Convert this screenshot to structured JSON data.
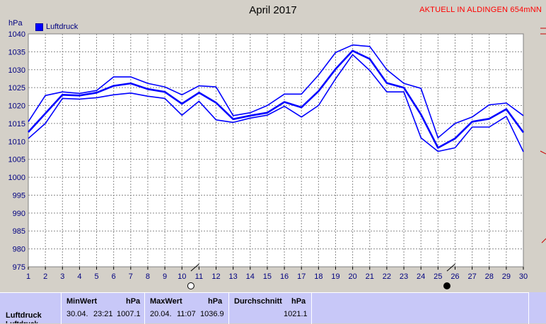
{
  "page": {
    "title": "April 2017",
    "site": "AKTUELL IN ALDINGEN 654mNN"
  },
  "chart_data": {
    "type": "line",
    "ylabel": "hPa",
    "ylim": [
      975,
      1040
    ],
    "yticks": [
      975,
      980,
      985,
      990,
      995,
      1000,
      1005,
      1010,
      1015,
      1020,
      1025,
      1030,
      1035,
      1040
    ],
    "x": [
      1,
      2,
      3,
      4,
      5,
      6,
      7,
      8,
      9,
      10,
      11,
      12,
      13,
      14,
      15,
      16,
      17,
      18,
      19,
      20,
      21,
      22,
      23,
      24,
      25,
      26,
      27,
      28,
      29,
      30
    ],
    "grid": true,
    "legend": "top-left",
    "series": [
      {
        "name": "Luftdruck",
        "color": "#0000ff",
        "max": [
          1015.5,
          1022.8,
          1023.8,
          1023.4,
          1024.2,
          1028.0,
          1028.0,
          1026.2,
          1025.2,
          1023.0,
          1025.5,
          1025.2,
          1017.2,
          1018.0,
          1020.0,
          1023.2,
          1023.2,
          1028.5,
          1034.8,
          1036.9,
          1036.5,
          1030.0,
          1026.2,
          1024.8,
          1011.0,
          1015.0,
          1016.8,
          1020.2,
          1020.7,
          1017.2
        ],
        "mean": [
          1012.6,
          1017.8,
          1023.0,
          1022.8,
          1023.6,
          1025.5,
          1026.2,
          1024.6,
          1023.8,
          1020.5,
          1023.6,
          1020.8,
          1016.2,
          1017.2,
          1018.0,
          1021.0,
          1019.5,
          1024.0,
          1030.2,
          1035.3,
          1033.0,
          1026.3,
          1025.0,
          1017.5,
          1008.2,
          1010.8,
          1015.5,
          1016.3,
          1019.0,
          1012.5
        ],
        "min": [
          1010.8,
          1015.0,
          1022.0,
          1021.8,
          1022.2,
          1023.0,
          1023.5,
          1022.6,
          1022.0,
          1017.3,
          1021.2,
          1016.0,
          1015.3,
          1016.5,
          1017.3,
          1019.8,
          1016.8,
          1020.0,
          1027.5,
          1034.2,
          1029.8,
          1023.8,
          1023.8,
          1011.0,
          1007.2,
          1008.2,
          1014.0,
          1014.0,
          1017.0,
          1007.1
        ]
      }
    ],
    "markers": [
      {
        "day": 11,
        "symbol": "full-moon-icon"
      },
      {
        "day": 26,
        "symbol": "new-moon-icon"
      }
    ]
  },
  "stats": {
    "row_label": "Luftdruck",
    "row_label_next": "Luftdruck",
    "min": {
      "header": "MinWert",
      "unit": "hPa",
      "date": "30.04.",
      "time": "23:21",
      "value": "1007.1"
    },
    "max": {
      "header": "MaxWert",
      "unit": "hPa",
      "date": "20.04.",
      "time": "11:07",
      "value": "1036.9"
    },
    "avg": {
      "header": "Durchschnitt",
      "unit": "hPa",
      "value": "1021.1"
    }
  }
}
